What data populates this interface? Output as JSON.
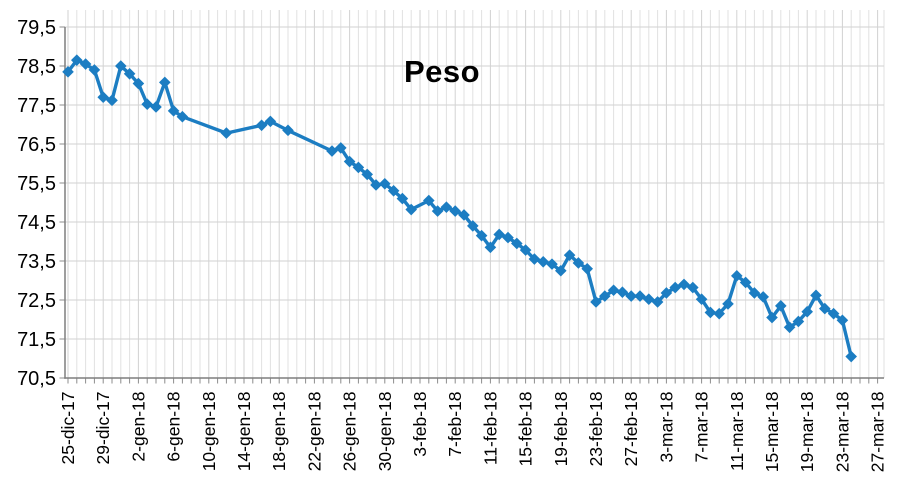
{
  "chart_data": {
    "type": "line",
    "title": "Peso",
    "series_name": "Peso",
    "line_color": "#1c7dc2",
    "marker_shape": "diamond",
    "background_color": "#ffffff",
    "axis_color": "#7f7f7f",
    "tick_color": "#8c8c8c",
    "grid": {
      "minor_color": "#e1e1e1",
      "major_color": "#d2d2d2",
      "vertical_interval_days": 1,
      "horizontal_interval": 1
    },
    "x_axis": {
      "tick_labels": [
        "25-dic-17",
        "29-dic-17",
        "2-gen-18",
        "6-gen-18",
        "10-gen-18",
        "14-gen-18",
        "18-gen-18",
        "22-gen-18",
        "26-gen-18",
        "30-gen-18",
        "3-feb-18",
        "7-feb-18",
        "11-feb-18",
        "15-feb-18",
        "19-feb-18",
        "23-feb-18",
        "27-feb-18",
        "3-mar-18",
        "7-mar-18",
        "11-mar-18",
        "15-mar-18",
        "19-mar-18",
        "23-mar-18",
        "27-mar-18"
      ],
      "tick_label_days": [
        0,
        4,
        8,
        12,
        16,
        20,
        24,
        28,
        32,
        36,
        40,
        44,
        48,
        52,
        56,
        60,
        64,
        68,
        72,
        76,
        80,
        84,
        88,
        92
      ]
    },
    "y_axis": {
      "tick_labels": [
        "79,5",
        "78,5",
        "77,5",
        "76,5",
        "75,5",
        "74,5",
        "73,5",
        "72,5",
        "71,5",
        "70,5"
      ],
      "tick_values": [
        79.5,
        78.5,
        77.5,
        76.5,
        75.5,
        74.5,
        73.5,
        72.5,
        71.5,
        70.5
      ],
      "min": 70.5,
      "max": 79.5
    },
    "points": [
      [
        0,
        "25-dic-17",
        78.35
      ],
      [
        1,
        "26-dic-17",
        78.65
      ],
      [
        2,
        "27-dic-17",
        78.55
      ],
      [
        3,
        "28-dic-17",
        78.4
      ],
      [
        4,
        "29-dic-17",
        77.7
      ],
      [
        5,
        "30-dic-17",
        77.62
      ],
      [
        6,
        "31-dic-17",
        78.5
      ],
      [
        7,
        "1-gen-18",
        78.3
      ],
      [
        8,
        "2-gen-18",
        78.05
      ],
      [
        9,
        "3-gen-18",
        77.52
      ],
      [
        10,
        "4-gen-18",
        77.45
      ],
      [
        11,
        "5-gen-18",
        78.08
      ],
      [
        12,
        "6-gen-18",
        77.35
      ],
      [
        13,
        "7-gen-18",
        77.2
      ],
      [
        18,
        "12-gen-18",
        76.78
      ],
      [
        22,
        "16-gen-18",
        76.98
      ],
      [
        23,
        "17-gen-18",
        77.08
      ],
      [
        25,
        "19-gen-18",
        76.85
      ],
      [
        30,
        "24-gen-18",
        76.32
      ],
      [
        31,
        "25-gen-18",
        76.4
      ],
      [
        32,
        "26-gen-18",
        76.05
      ],
      [
        33,
        "27-gen-18",
        75.9
      ],
      [
        34,
        "28-gen-18",
        75.72
      ],
      [
        35,
        "29-gen-18",
        75.45
      ],
      [
        36,
        "30-gen-18",
        75.48
      ],
      [
        37,
        "31-gen-18",
        75.3
      ],
      [
        38,
        "1-feb-18",
        75.1
      ],
      [
        39,
        "2-feb-18",
        74.82
      ],
      [
        41,
        "4-feb-18",
        75.05
      ],
      [
        42,
        "5-feb-18",
        74.78
      ],
      [
        43,
        "6-feb-18",
        74.88
      ],
      [
        44,
        "7-feb-18",
        74.78
      ],
      [
        45,
        "8-feb-18",
        74.68
      ],
      [
        46,
        "9-feb-18",
        74.4
      ],
      [
        47,
        "10-feb-18",
        74.15
      ],
      [
        48,
        "11-feb-18",
        73.85
      ],
      [
        49,
        "12-feb-18",
        74.18
      ],
      [
        50,
        "13-feb-18",
        74.1
      ],
      [
        51,
        "14-feb-18",
        73.95
      ],
      [
        52,
        "15-feb-18",
        73.78
      ],
      [
        53,
        "16-feb-18",
        73.55
      ],
      [
        54,
        "17-feb-18",
        73.48
      ],
      [
        55,
        "18-feb-18",
        73.42
      ],
      [
        56,
        "19-feb-18",
        73.25
      ],
      [
        57,
        "20-feb-18",
        73.65
      ],
      [
        58,
        "21-feb-18",
        73.45
      ],
      [
        59,
        "22-feb-18",
        73.3
      ],
      [
        60,
        "23-feb-18",
        72.45
      ],
      [
        61,
        "24-feb-18",
        72.6
      ],
      [
        62,
        "25-feb-18",
        72.75
      ],
      [
        63,
        "26-feb-18",
        72.7
      ],
      [
        64,
        "27-feb-18",
        72.6
      ],
      [
        65,
        "28-feb-18",
        72.6
      ],
      [
        66,
        "1-mar-18",
        72.52
      ],
      [
        67,
        "2-mar-18",
        72.45
      ],
      [
        68,
        "3-mar-18",
        72.68
      ],
      [
        69,
        "4-mar-18",
        72.82
      ],
      [
        70,
        "5-mar-18",
        72.9
      ],
      [
        71,
        "6-mar-18",
        72.82
      ],
      [
        72,
        "7-mar-18",
        72.52
      ],
      [
        73,
        "8-mar-18",
        72.18
      ],
      [
        74,
        "9-mar-18",
        72.15
      ],
      [
        75,
        "10-mar-18",
        72.4
      ],
      [
        76,
        "11-mar-18",
        73.12
      ],
      [
        77,
        "12-mar-18",
        72.95
      ],
      [
        78,
        "13-mar-18",
        72.68
      ],
      [
        79,
        "14-mar-18",
        72.58
      ],
      [
        80,
        "15-mar-18",
        72.05
      ],
      [
        81,
        "16-mar-18",
        72.35
      ],
      [
        82,
        "17-mar-18",
        71.8
      ],
      [
        83,
        "18-mar-18",
        71.95
      ],
      [
        84,
        "19-mar-18",
        72.2
      ],
      [
        85,
        "20-mar-18",
        72.62
      ],
      [
        86,
        "21-mar-18",
        72.28
      ],
      [
        87,
        "22-mar-18",
        72.15
      ],
      [
        88,
        "23-mar-18",
        71.98
      ],
      [
        89,
        "24-mar-18",
        71.05
      ]
    ]
  }
}
